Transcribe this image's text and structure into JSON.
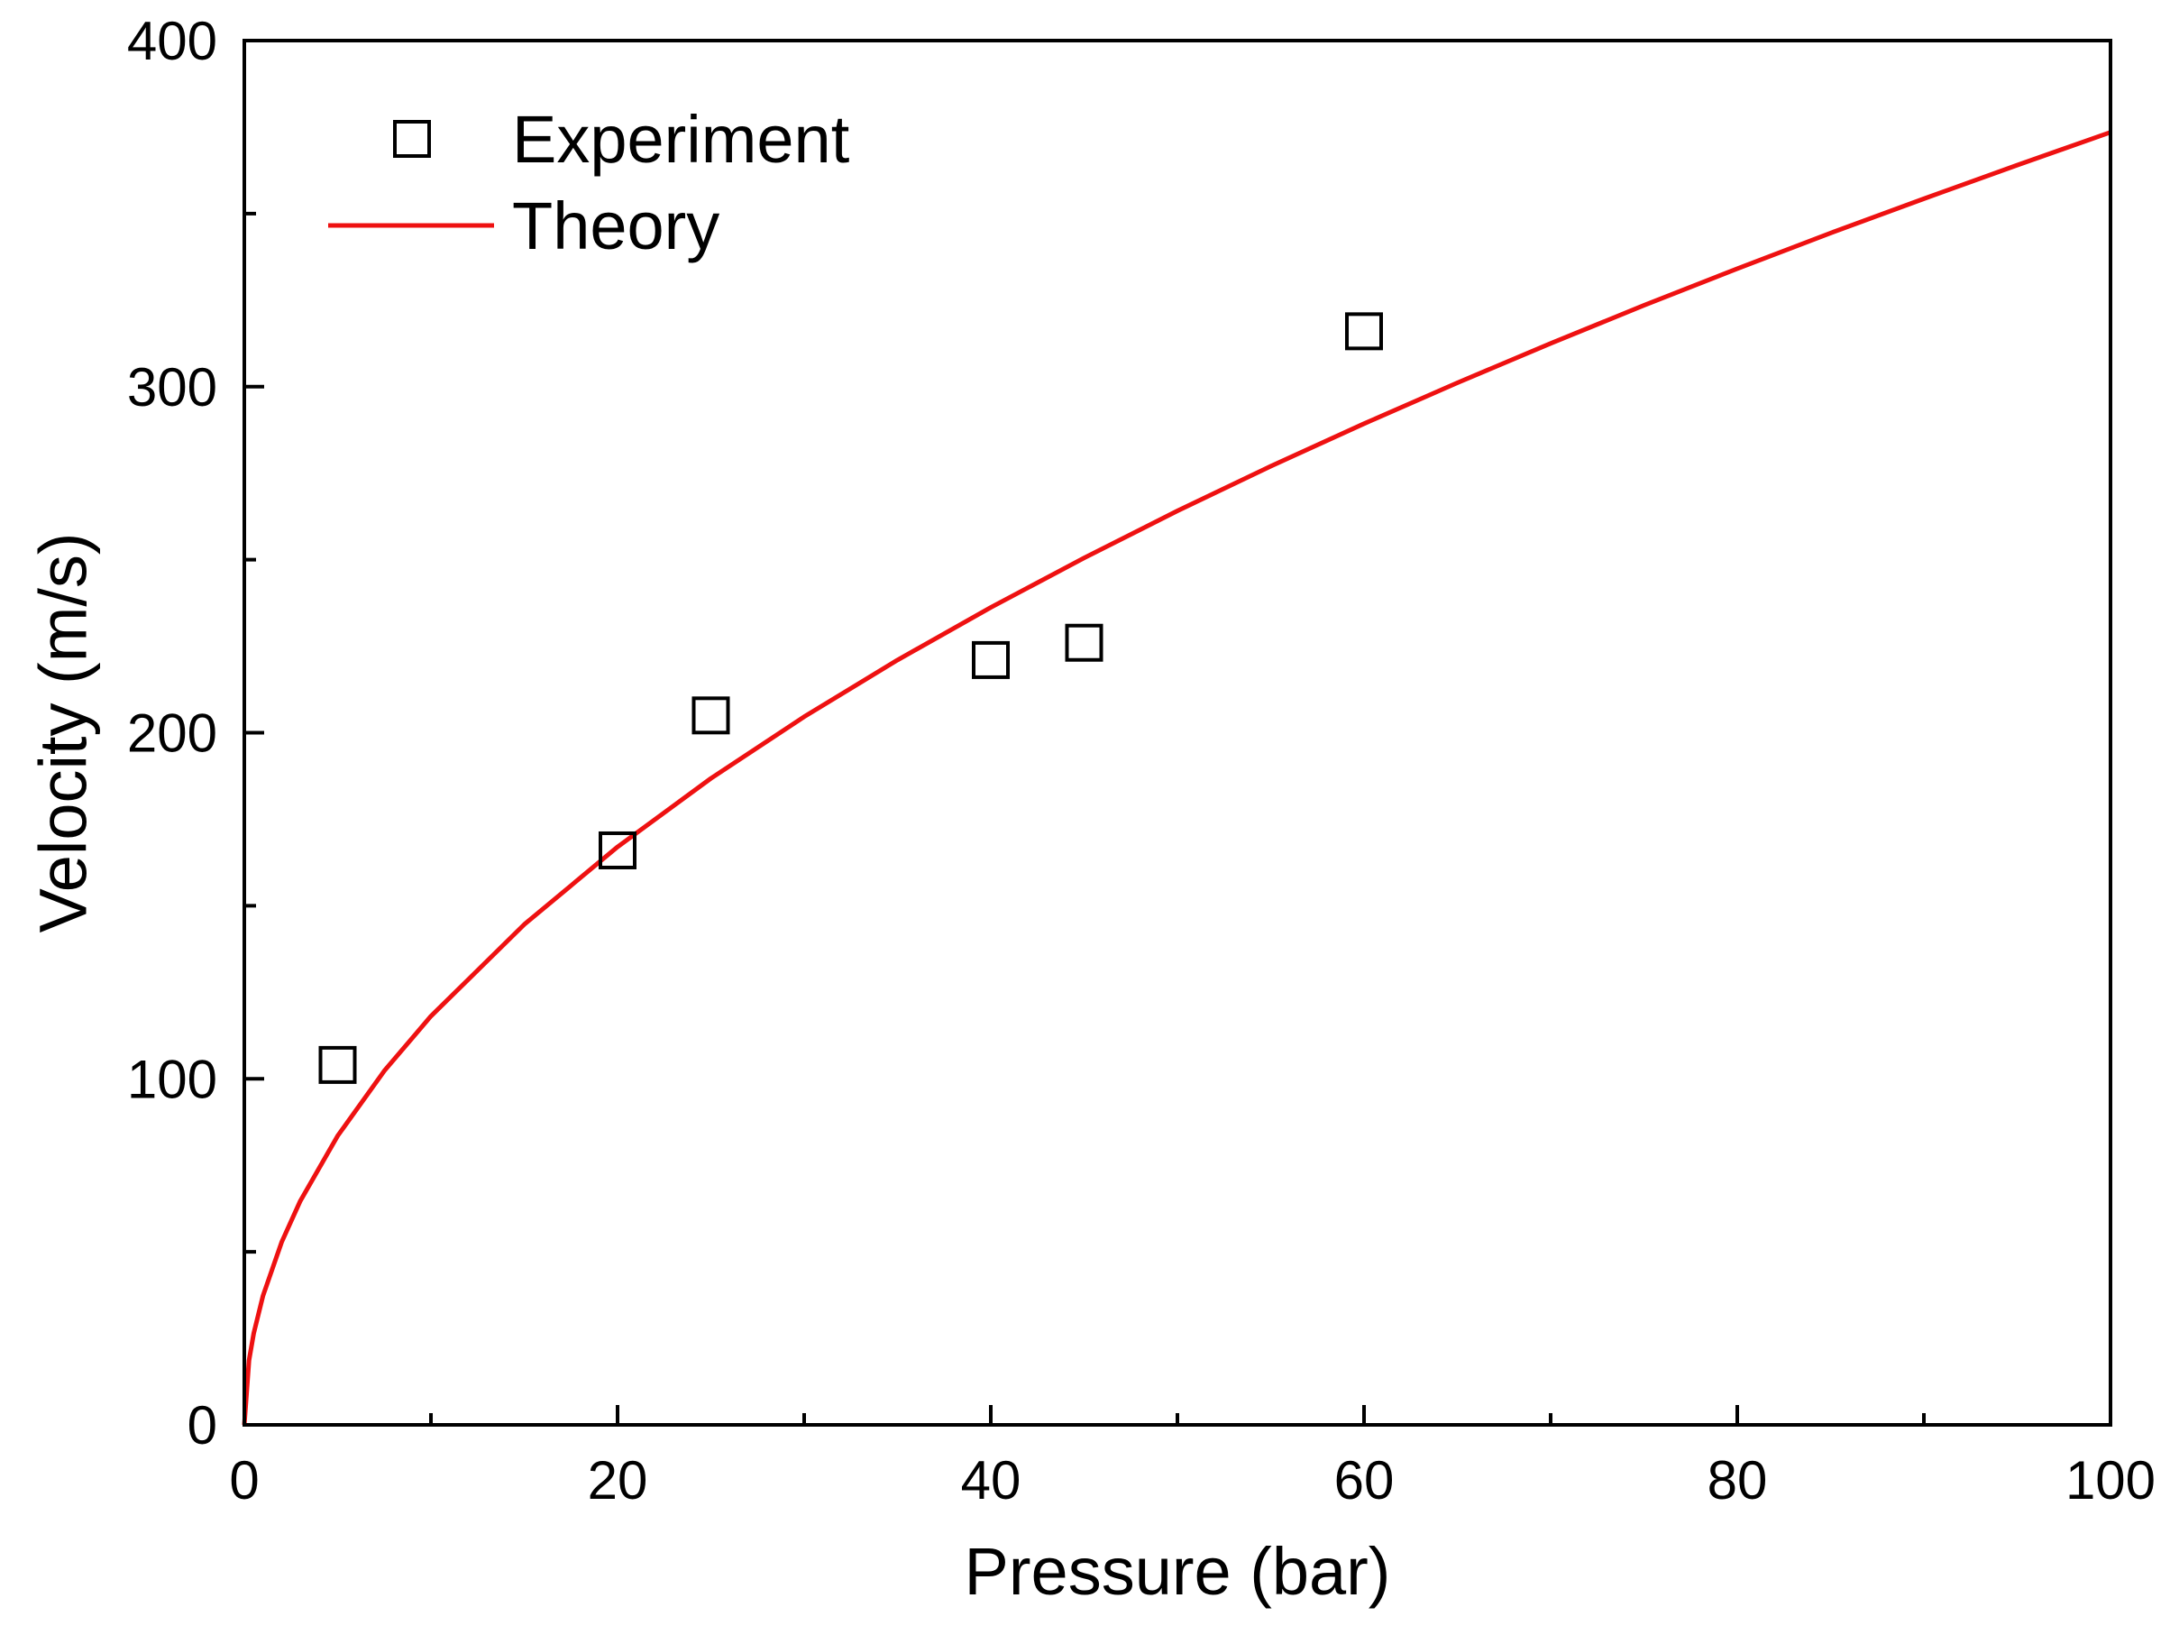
{
  "chart_data": {
    "type": "scatter",
    "xlabel": "Pressure (bar)",
    "ylabel": "Velocity (m/s)",
    "xlim": [
      0,
      100
    ],
    "ylim": [
      0,
      400
    ],
    "x_ticks": [
      0,
      20,
      40,
      60,
      80,
      100
    ],
    "y_ticks": [
      0,
      100,
      200,
      300,
      400
    ],
    "x_tick_labels": [
      "0",
      "20",
      "40",
      "60",
      "80",
      "100"
    ],
    "y_tick_labels": [
      "0",
      "100",
      "200",
      "300",
      "400"
    ],
    "x_minor_step": 10,
    "y_minor_step": 50,
    "grid": false,
    "legend_position": "top-left",
    "series": [
      {
        "name": "Experiment",
        "kind": "scatter",
        "marker": "open-square",
        "color": "#000000",
        "x": [
          5,
          20,
          25,
          40,
          45,
          60
        ],
        "y": [
          104,
          166,
          205,
          221,
          226,
          316
        ]
      },
      {
        "name": "Theory",
        "kind": "line",
        "color": "#ee1111",
        "x": [
          0,
          0.25,
          0.5,
          1,
          2,
          3,
          5,
          7.5,
          10,
          15,
          20,
          25,
          30,
          35,
          40,
          45,
          50,
          55,
          60,
          65,
          70,
          75,
          80,
          85,
          90,
          95,
          100
        ],
        "y": [
          0,
          18.6,
          26.4,
          37.3,
          52.8,
          64.7,
          83.5,
          102.3,
          118.1,
          144.6,
          167.0,
          186.8,
          204.6,
          221.0,
          236.2,
          250.5,
          264.1,
          277.0,
          289.3,
          301.1,
          312.5,
          323.5,
          334.1,
          344.4,
          354.3,
          364.0,
          373.5
        ]
      }
    ]
  }
}
